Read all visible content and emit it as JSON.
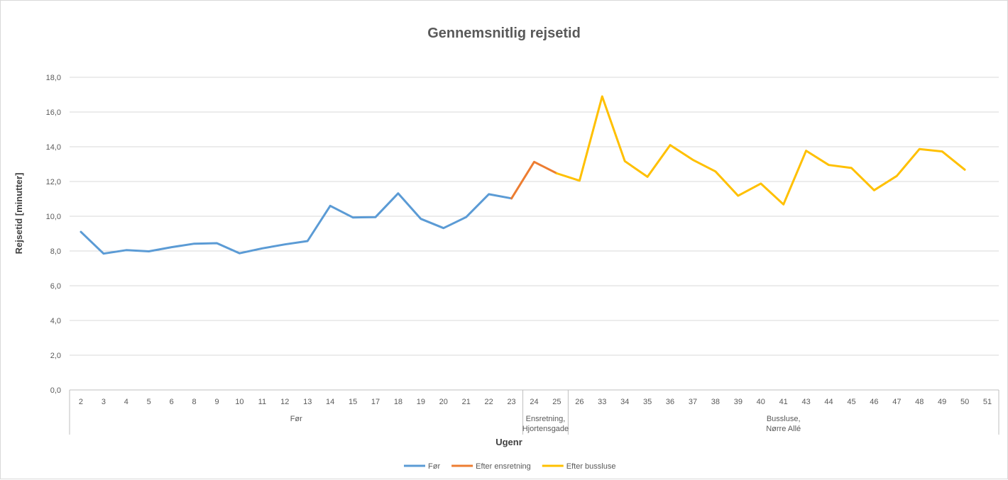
{
  "chart_data": {
    "type": "line",
    "title": "Gennemsnitlig rejsetid",
    "xlabel": "Ugenr",
    "ylabel": "Rejsetid [minutter]",
    "ylim": [
      0,
      18
    ],
    "yticks": [
      "0,0",
      "2,0",
      "4,0",
      "6,0",
      "8,0",
      "10,0",
      "12,0",
      "14,0",
      "16,0",
      "18,0"
    ],
    "ytick_values": [
      0,
      2,
      4,
      6,
      8,
      10,
      12,
      14,
      16,
      18
    ],
    "grid": true,
    "legend_position": "bottom",
    "categories": [
      "2",
      "3",
      "4",
      "5",
      "6",
      "8",
      "9",
      "10",
      "11",
      "12",
      "13",
      "14",
      "15",
      "17",
      "18",
      "19",
      "20",
      "21",
      "22",
      "23",
      "24",
      "25",
      "26",
      "33",
      "34",
      "35",
      "36",
      "37",
      "38",
      "39",
      "40",
      "41",
      "43",
      "44",
      "45",
      "46",
      "47",
      "48",
      "49",
      "50",
      "51"
    ],
    "groups": [
      {
        "lines": [
          "Før"
        ],
        "start": 0,
        "end": 19
      },
      {
        "lines": [
          "Ensretning,",
          "Hjortensgade"
        ],
        "start": 20,
        "end": 21
      },
      {
        "lines": [
          "Bussluse,",
          "Nørre Allé"
        ],
        "start": 22,
        "end": 40
      }
    ],
    "series": [
      {
        "name": "Før",
        "color": "#5B9BD5",
        "values": [
          9.1,
          7.85,
          8.05,
          7.98,
          8.22,
          8.42,
          8.45,
          7.87,
          8.15,
          8.38,
          8.57,
          10.6,
          9.93,
          9.95,
          11.32,
          9.85,
          9.32,
          9.95,
          11.27,
          11.03,
          null,
          null,
          null,
          null,
          null,
          null,
          null,
          null,
          null,
          null,
          null,
          null,
          null,
          null,
          null,
          null,
          null,
          null,
          null,
          null,
          null
        ]
      },
      {
        "name": "Efter ensretning",
        "color": "#ED7D31",
        "values": [
          null,
          null,
          null,
          null,
          null,
          null,
          null,
          null,
          null,
          null,
          null,
          null,
          null,
          null,
          null,
          null,
          null,
          null,
          null,
          11.03,
          13.13,
          12.47,
          null,
          null,
          null,
          null,
          null,
          null,
          null,
          null,
          null,
          null,
          null,
          null,
          null,
          null,
          null,
          null,
          null,
          null,
          null
        ]
      },
      {
        "name": "Efter bussluse",
        "color": "#FFC000",
        "values": [
          null,
          null,
          null,
          null,
          null,
          null,
          null,
          null,
          null,
          null,
          null,
          null,
          null,
          null,
          null,
          null,
          null,
          null,
          null,
          null,
          null,
          12.47,
          12.05,
          16.9,
          13.17,
          12.27,
          14.1,
          13.25,
          12.58,
          11.18,
          11.88,
          10.68,
          13.77,
          12.95,
          12.78,
          11.5,
          12.32,
          13.87,
          13.73,
          12.68,
          null
        ]
      }
    ]
  }
}
